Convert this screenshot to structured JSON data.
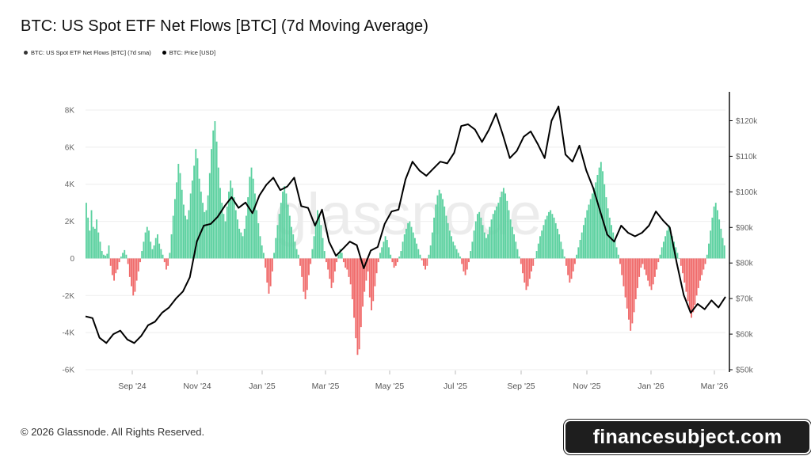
{
  "header": {
    "title": "BTC: US Spot ETF Net Flows [BTC] (7d Moving Average)"
  },
  "legend": {
    "flows_label": "BTC: US Spot ETF Net Flows [BTC] (7d sma)",
    "price_label": "BTC: Price [USD]"
  },
  "footer": {
    "copyright": "© 2026 Glassnode. All Rights Reserved.",
    "corner_watermark": "glassnode",
    "site_badge": "financesubject.com"
  },
  "chart_data": {
    "type": "bar",
    "watermark": "glassnode",
    "x_ticks": [
      "Sep '24",
      "Nov '24",
      "Jan '25",
      "Mar '25",
      "May '25",
      "Jul '25",
      "Sep '25",
      "Nov '25",
      "Jan '26",
      "Mar '26"
    ],
    "left_axis": {
      "ticks": [
        "8K",
        "6K",
        "4K",
        "2K",
        "0",
        "-2K",
        "-4K",
        "-6K"
      ],
      "tick_values": [
        8000,
        6000,
        4000,
        2000,
        0,
        -2000,
        -4000,
        -6000
      ],
      "ylim": [
        -6000,
        8000
      ]
    },
    "right_axis": {
      "ticks": [
        "$120k",
        "$110k",
        "$100k",
        "$90k",
        "$80k",
        "$70k",
        "$60k",
        "$50k"
      ],
      "tick_values": [
        120000,
        110000,
        100000,
        90000,
        80000,
        70000,
        60000,
        50000
      ],
      "ylim": [
        50000,
        127000
      ]
    },
    "colors": {
      "positive": "#5cd1a0",
      "negative": "#f06a6a",
      "price": "#000000"
    },
    "series": [
      {
        "name": "BTC: US Spot ETF Net Flows [BTC] (7d sma)",
        "kind": "bar",
        "approx_daily_values_start_aug_2024": [
          3000,
          2200,
          1500,
          2600,
          1700,
          1600,
          2100,
          1400,
          900,
          400,
          200,
          150,
          250,
          700,
          -400,
          -900,
          -1200,
          -800,
          -600,
          -200,
          100,
          300,
          450,
          200,
          -300,
          -1000,
          -1500,
          -2000,
          -1800,
          -1200,
          -700,
          -200,
          400,
          900,
          1400,
          1700,
          1500,
          900,
          500,
          700,
          1100,
          1300,
          800,
          500,
          200,
          -200,
          -600,
          -400,
          300,
          1300,
          2300,
          3200,
          4100,
          5100,
          4600,
          3700,
          2900,
          2300,
          2100,
          2600,
          3500,
          4200,
          5000,
          5900,
          5400,
          4300,
          3600,
          3000,
          2500,
          2600,
          3400,
          4600,
          5900,
          6900,
          7400,
          6300,
          4900,
          3800,
          3000,
          2400,
          2000,
          2800,
          3600,
          4200,
          3800,
          3300,
          2600,
          2100,
          1600,
          1400,
          1200,
          1600,
          2300,
          3300,
          4400,
          4900,
          4300,
          3500,
          2600,
          1900,
          1200,
          700,
          300,
          -500,
          -1300,
          -1900,
          -1500,
          -700,
          300,
          1100,
          1800,
          2400,
          3000,
          3600,
          3900,
          3500,
          2900,
          2300,
          1700,
          1300,
          900,
          500,
          200,
          -400,
          -1000,
          -1800,
          -2200,
          -1700,
          -900,
          -300,
          500,
          1200,
          2000,
          2600,
          2400,
          1800,
          1100,
          400,
          -200,
          -600,
          -1100,
          -1600,
          -1300,
          -700,
          -200,
          200,
          500,
          300,
          -200,
          -500,
          -600,
          -1000,
          -1400,
          -2200,
          -3200,
          -4300,
          -5200,
          -4900,
          -3700,
          -2600,
          -1800,
          -1200,
          -700,
          -2100,
          -2800,
          -2300,
          -1500,
          -800,
          -200,
          300,
          600,
          900,
          1200,
          1000,
          600,
          200,
          -200,
          -500,
          -400,
          -200,
          100,
          400,
          900,
          1300,
          1600,
          1900,
          2000,
          1700,
          1400,
          1100,
          800,
          500,
          200,
          -100,
          -400,
          -600,
          -400,
          200,
          700,
          1400,
          2200,
          2900,
          3400,
          3700,
          3500,
          3200,
          2800,
          2300,
          1900,
          1500,
          1200,
          900,
          700,
          500,
          300,
          100,
          -300,
          -700,
          -900,
          -600,
          -200,
          400,
          900,
          1500,
          2000,
          2400,
          2500,
          2200,
          1800,
          1400,
          1100,
          1300,
          1700,
          2100,
          2400,
          2600,
          2800,
          3000,
          3300,
          3600,
          3800,
          3500,
          3100,
          2600,
          2100,
          1700,
          1300,
          900,
          500,
          100,
          -300,
          -800,
          -1300,
          -1700,
          -1500,
          -1100,
          -700,
          -400,
          0,
          400,
          800,
          1200,
          1500,
          1800,
          2100,
          2300,
          2500,
          2600,
          2400,
          2200,
          1900,
          1600,
          1300,
          900,
          500,
          100,
          -400,
          -900,
          -1300,
          -1100,
          -700,
          -300,
          200,
          600,
          1000,
          1400,
          1800,
          2200,
          2600,
          2900,
          3200,
          3500,
          3800,
          4100,
          4500,
          4900,
          5200,
          4700,
          4000,
          3300,
          2700,
          2200,
          1800,
          1400,
          1000,
          600,
          200,
          -300,
          -900,
          -1500,
          -2100,
          -2700,
          -3300,
          -3900,
          -3500,
          -2900,
          -2200,
          -1600,
          -1000,
          -500,
          -300,
          -600,
          -900,
          -1200,
          -1500,
          -1700,
          -1400,
          -1000,
          -600,
          -200,
          200,
          600,
          900,
          1200,
          1500,
          1800,
          1500,
          1200,
          900,
          600,
          300,
          0,
          -400,
          -800,
          -1300,
          -1800,
          -2300,
          -2800,
          -3200,
          -2900,
          -2500,
          -2000,
          -1600,
          -1200,
          -900,
          -600,
          -300,
          200,
          800,
          1500,
          2200,
          2800,
          3000,
          2600,
          2100,
          1600,
          1100,
          700
        ]
      },
      {
        "name": "BTC: Price [USD]",
        "kind": "line",
        "approx_weekly_points": [
          [
            0,
            65000
          ],
          [
            1,
            64500
          ],
          [
            2,
            59000
          ],
          [
            3,
            57500
          ],
          [
            4,
            60000
          ],
          [
            5,
            61000
          ],
          [
            6,
            58500
          ],
          [
            7,
            57500
          ],
          [
            8,
            59500
          ],
          [
            9,
            62500
          ],
          [
            10,
            63500
          ],
          [
            11,
            66000
          ],
          [
            12,
            67500
          ],
          [
            13,
            70000
          ],
          [
            14,
            72000
          ],
          [
            15,
            76000
          ],
          [
            16,
            86000
          ],
          [
            17,
            90500
          ],
          [
            18,
            91000
          ],
          [
            19,
            93000
          ],
          [
            20,
            96000
          ],
          [
            21,
            98500
          ],
          [
            22,
            95500
          ],
          [
            23,
            97000
          ],
          [
            24,
            94000
          ],
          [
            25,
            99000
          ],
          [
            26,
            102000
          ],
          [
            27,
            104000
          ],
          [
            28,
            100500
          ],
          [
            29,
            101500
          ],
          [
            30,
            104000
          ],
          [
            31,
            96000
          ],
          [
            32,
            95500
          ],
          [
            33,
            90500
          ],
          [
            34,
            95000
          ],
          [
            35,
            86000
          ],
          [
            36,
            82000
          ],
          [
            37,
            84000
          ],
          [
            38,
            86000
          ],
          [
            39,
            85000
          ],
          [
            40,
            78500
          ],
          [
            41,
            83500
          ],
          [
            42,
            84500
          ],
          [
            43,
            91000
          ],
          [
            44,
            94500
          ],
          [
            45,
            95000
          ],
          [
            46,
            103500
          ],
          [
            47,
            108500
          ],
          [
            48,
            106000
          ],
          [
            49,
            104500
          ],
          [
            50,
            106500
          ],
          [
            51,
            108500
          ],
          [
            52,
            108000
          ],
          [
            53,
            111000
          ],
          [
            54,
            118500
          ],
          [
            55,
            119000
          ],
          [
            56,
            117500
          ],
          [
            57,
            114000
          ],
          [
            58,
            117500
          ],
          [
            59,
            122000
          ],
          [
            60,
            116000
          ],
          [
            61,
            109500
          ],
          [
            62,
            111500
          ],
          [
            63,
            115500
          ],
          [
            64,
            117000
          ],
          [
            65,
            113500
          ],
          [
            66,
            109500
          ],
          [
            67,
            120000
          ],
          [
            68,
            124000
          ],
          [
            69,
            110500
          ],
          [
            70,
            108500
          ],
          [
            71,
            113000
          ],
          [
            72,
            106000
          ],
          [
            73,
            101000
          ],
          [
            74,
            94500
          ],
          [
            75,
            88000
          ],
          [
            76,
            86000
          ],
          [
            77,
            90500
          ],
          [
            78,
            88500
          ],
          [
            79,
            87500
          ],
          [
            80,
            88500
          ],
          [
            81,
            90500
          ],
          [
            82,
            94500
          ],
          [
            83,
            92000
          ],
          [
            84,
            90000
          ],
          [
            85,
            80000
          ],
          [
            86,
            71000
          ],
          [
            87,
            66000
          ],
          [
            88,
            68500
          ],
          [
            89,
            67000
          ],
          [
            90,
            69500
          ],
          [
            91,
            67500
          ],
          [
            92,
            70500
          ]
        ]
      }
    ]
  }
}
